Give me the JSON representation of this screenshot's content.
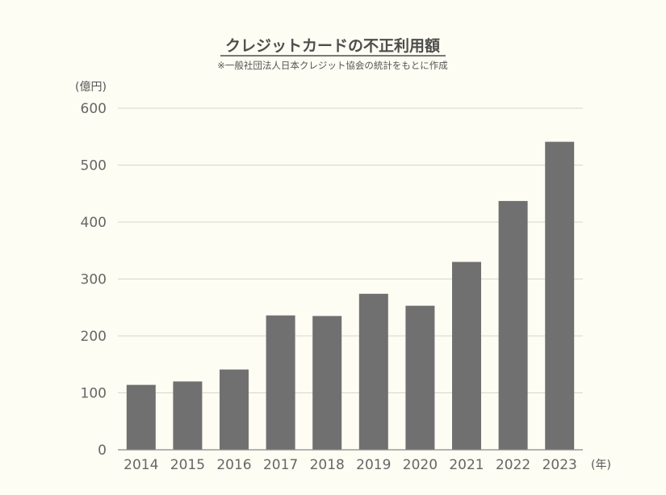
{
  "chart_data": {
    "type": "bar",
    "title": "クレジットカードの不正利用額",
    "subtitle": "※一般社団法人日本クレジット協会の統計をもとに作成",
    "ylabel": "(億円)",
    "xlabel": "(年)",
    "categories": [
      "2014",
      "2015",
      "2016",
      "2017",
      "2018",
      "2019",
      "2020",
      "2021",
      "2022",
      "2023"
    ],
    "values": [
      114,
      120,
      141,
      236,
      235,
      274,
      253,
      330,
      437,
      541
    ],
    "ylim": [
      0,
      600
    ],
    "yticks": [
      0,
      100,
      200,
      300,
      400,
      500,
      600
    ],
    "grid": true,
    "bar_color": "#707070"
  }
}
